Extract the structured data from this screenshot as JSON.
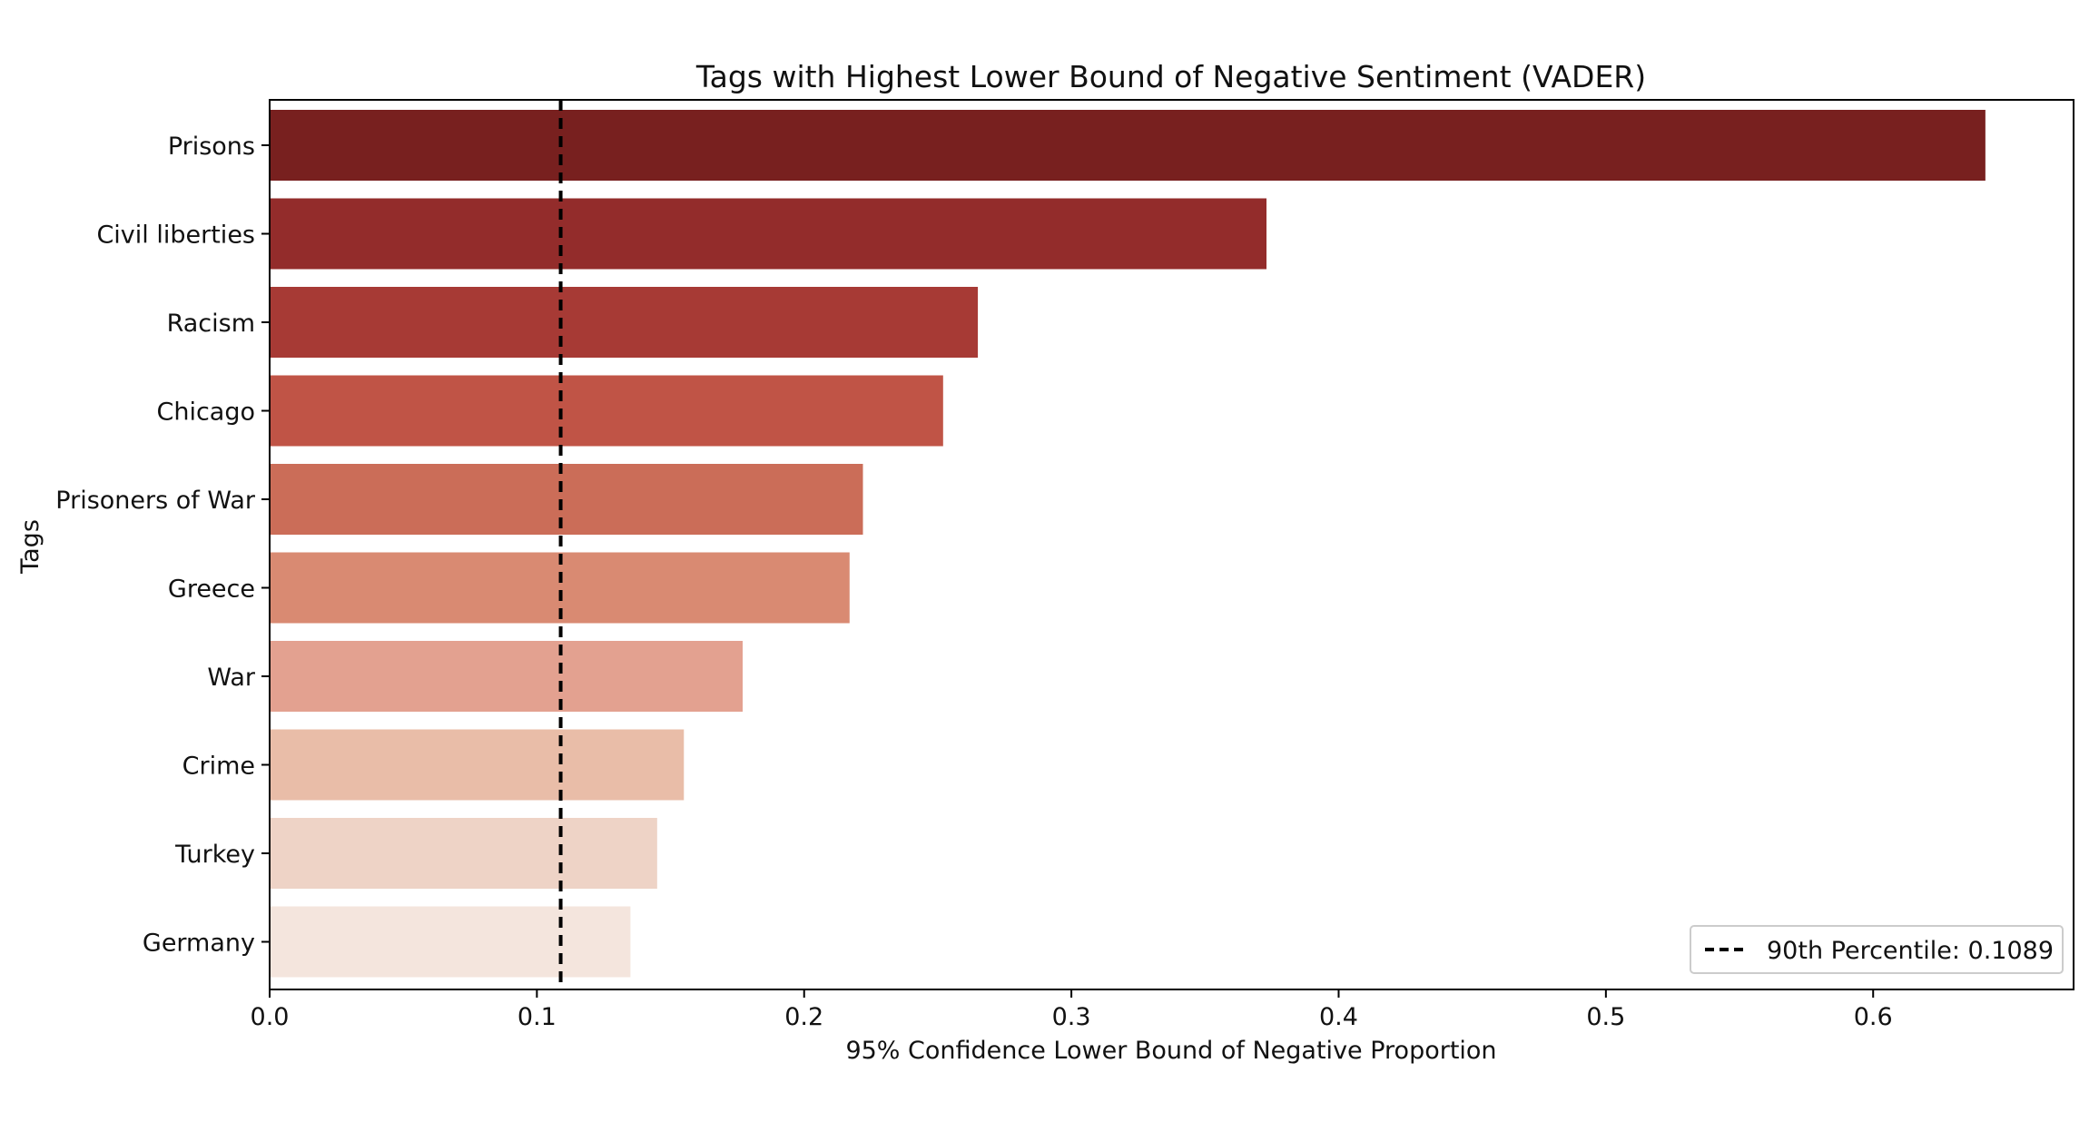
{
  "chart_data": {
    "type": "bar",
    "orientation": "horizontal",
    "title": "Tags with Highest Lower Bound of Negative Sentiment (VADER)",
    "xlabel": "95% Confidence Lower Bound of Negative Proportion",
    "ylabel": "Tags",
    "xlim": [
      0,
      0.675
    ],
    "xticks": [
      0.0,
      0.1,
      0.2,
      0.3,
      0.4,
      0.5,
      0.6
    ],
    "xtick_labels": [
      "0.0",
      "0.1",
      "0.2",
      "0.3",
      "0.4",
      "0.5",
      "0.6"
    ],
    "categories": [
      "Prisons",
      "Civil liberties",
      "Racism",
      "Chicago",
      "Prisoners of War",
      "Greece",
      "War",
      "Crime",
      "Turkey",
      "Germany"
    ],
    "values": [
      0.642,
      0.373,
      0.265,
      0.252,
      0.222,
      0.217,
      0.177,
      0.155,
      0.145,
      0.135
    ],
    "colors": [
      "#78201f",
      "#932c2b",
      "#a73a35",
      "#c05446",
      "#cb6d58",
      "#d98a72",
      "#e3a190",
      "#e9bda8",
      "#eed3c6",
      "#f4e5dd"
    ],
    "reference_line": {
      "value": 0.1089,
      "style": "dashed",
      "color": "#000000",
      "label": "90th Percentile: 0.1089"
    },
    "legend_position": "lower-right",
    "grid": false
  }
}
